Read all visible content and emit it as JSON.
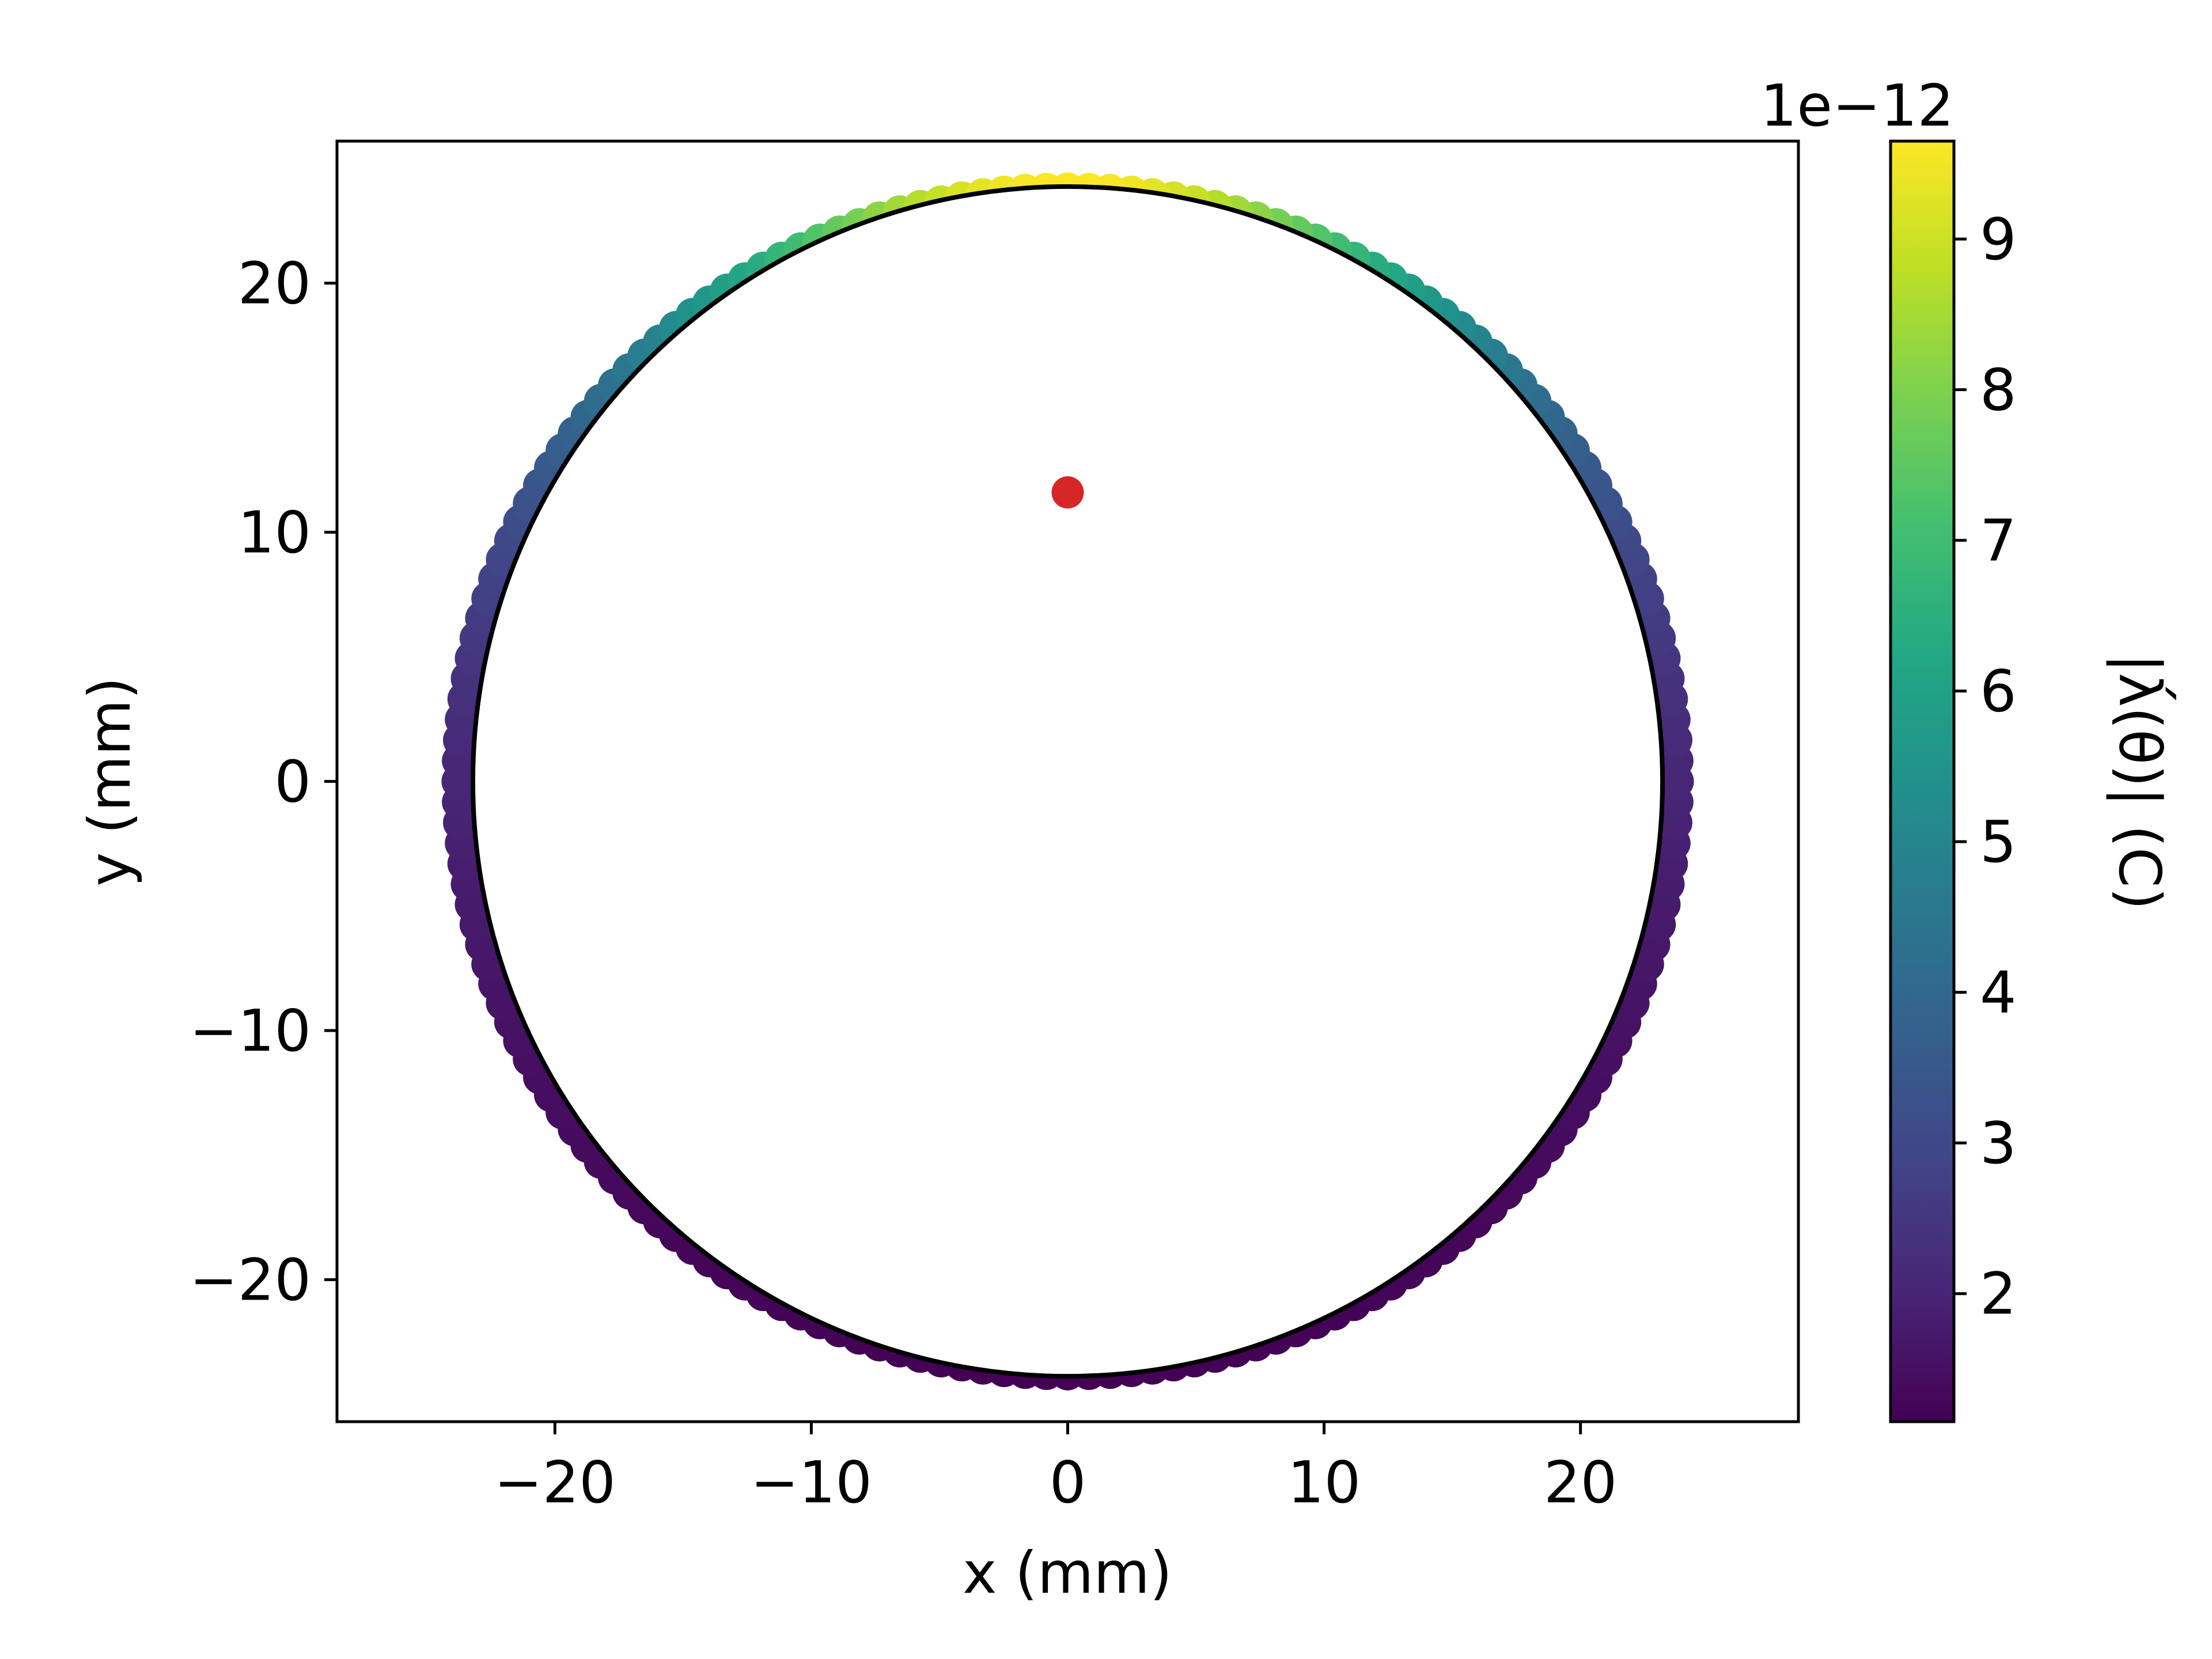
{
  "chart_data": {
    "type": "scatter",
    "xlabel": "x (mm)",
    "ylabel": "y (mm)",
    "xlim": [
      -28.5,
      28.5
    ],
    "ylim": [
      -25.7,
      25.7
    ],
    "xticks": [
      -20,
      -10,
      0,
      10,
      20
    ],
    "xtick_labels": [
      "−20",
      "−10",
      "0",
      "10",
      "20"
    ],
    "yticks": [
      -20,
      -10,
      0,
      10,
      20
    ],
    "ytick_labels": [
      "−20",
      "−10",
      "0",
      "10",
      "20"
    ],
    "grid": false,
    "ring": {
      "radius_mm": 23.75,
      "point_count": 180,
      "colormap": "viridis",
      "description_value": "|λ(θ)|",
      "value_min": 1.15e-12,
      "value_max": 9.65e-12,
      "model_source": {
        "x": 0.0,
        "y": 11.6
      }
    },
    "boundary_circle": {
      "radius_mm": 23.2,
      "color": "#000000"
    },
    "marker": {
      "x": 0.0,
      "y": 11.6,
      "color": "#d62728"
    },
    "colorbar": {
      "label": "|λ́(θ)| (C)",
      "multiplier": "1e−12",
      "ticks": [
        2,
        3,
        4,
        5,
        6,
        7,
        8,
        9
      ],
      "tick_labels": [
        "2",
        "3",
        "4",
        "5",
        "6",
        "7",
        "8",
        "9"
      ],
      "range": [
        1.15,
        9.65
      ]
    }
  }
}
